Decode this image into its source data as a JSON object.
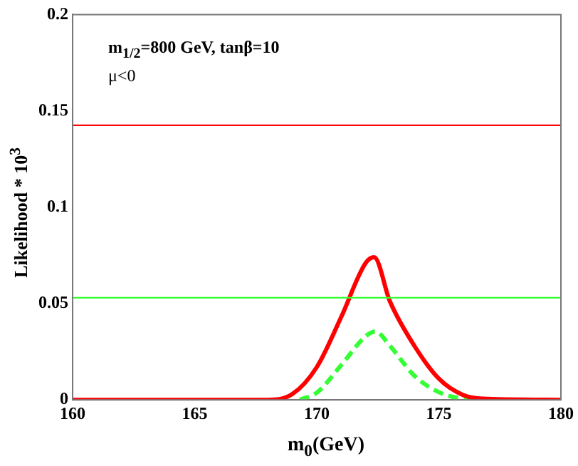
{
  "chart_data": {
    "type": "line",
    "xlabel": "m$_{0}$(GeV)",
    "ylabel": "Likelihood * 10$^{3}$",
    "annotations": [
      "m$_{1/2}$=800 GeV, tanβ=10",
      "μ<0"
    ],
    "xlim": [
      160,
      180
    ],
    "xticks": [
      160,
      165,
      170,
      175,
      180
    ],
    "ylim": [
      0,
      0.2
    ],
    "yticks": [
      0,
      0.05,
      0.1,
      0.15,
      0.2
    ],
    "grid": false,
    "legend": false,
    "marker": "none",
    "ref_lines": [
      {
        "axis": "y",
        "value": 0.1425,
        "color": "#ff0000"
      },
      {
        "axis": "y",
        "value": 0.053,
        "color": "#33ff33"
      }
    ],
    "series": [
      {
        "color": "#ff0000",
        "line_style": "solid",
        "x": [
          160,
          165,
          168,
          169,
          170,
          171,
          172,
          172.35,
          173,
          174,
          175,
          176,
          177,
          180
        ],
        "values": [
          0,
          0,
          0,
          0.003,
          0.017,
          0.043,
          0.071,
          0.074,
          0.051,
          0.028,
          0.011,
          0.0025,
          0.0005,
          0
        ]
      },
      {
        "color": "#33ff33",
        "line_style": "dashed",
        "x": [
          169.3,
          170,
          171,
          172,
          172.4,
          173,
          174,
          175,
          176,
          176.5
        ],
        "values": [
          0,
          0.0037,
          0.018,
          0.033,
          0.0355,
          0.028,
          0.0125,
          0.004,
          0.0005,
          0
        ]
      }
    ]
  }
}
